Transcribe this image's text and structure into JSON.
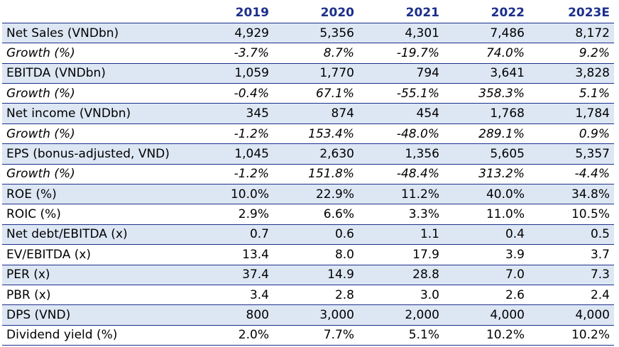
{
  "table": {
    "headers": [
      "",
      "2019",
      "2020",
      "2021",
      "2022",
      "2023E"
    ],
    "rows": [
      {
        "label": "Net Sales (VNDbn)",
        "values": [
          "4,929",
          "5,356",
          "4,301",
          "7,486",
          "8,172"
        ],
        "shaded": true,
        "italic": false
      },
      {
        "label": "Growth (%)",
        "values": [
          "-3.7%",
          "8.7%",
          "-19.7%",
          "74.0%",
          "9.2%"
        ],
        "shaded": false,
        "italic": true
      },
      {
        "label": "EBITDA (VNDbn)",
        "values": [
          "1,059",
          "1,770",
          "794",
          "3,641",
          "3,828"
        ],
        "shaded": true,
        "italic": false
      },
      {
        "label": "Growth (%)",
        "values": [
          "-0.4%",
          "67.1%",
          "-55.1%",
          "358.3%",
          "5.1%"
        ],
        "shaded": false,
        "italic": true
      },
      {
        "label": "Net income (VNDbn)",
        "values": [
          "345",
          "874",
          "454",
          "1,768",
          "1,784"
        ],
        "shaded": true,
        "italic": false
      },
      {
        "label": "Growth (%)",
        "values": [
          "-1.2%",
          "153.4%",
          "-48.0%",
          "289.1%",
          "0.9%"
        ],
        "shaded": false,
        "italic": true
      },
      {
        "label": "EPS (bonus-adjusted, VND)",
        "values": [
          "1,045",
          "2,630",
          "1,356",
          "5,605",
          "5,357"
        ],
        "shaded": true,
        "italic": false
      },
      {
        "label": "Growth (%)",
        "values": [
          "-1.2%",
          "151.8%",
          "-48.4%",
          "313.2%",
          "-4.4%"
        ],
        "shaded": false,
        "italic": true
      },
      {
        "label": "ROE (%)",
        "values": [
          "10.0%",
          "22.9%",
          "11.2%",
          "40.0%",
          "34.8%"
        ],
        "shaded": true,
        "italic": false
      },
      {
        "label": "ROIC (%)",
        "values": [
          "2.9%",
          "6.6%",
          "3.3%",
          "11.0%",
          "10.5%"
        ],
        "shaded": false,
        "italic": false
      },
      {
        "label": "Net debt/EBITDA (x)",
        "values": [
          "0.7",
          "0.6",
          "1.1",
          "0.4",
          "0.5"
        ],
        "shaded": true,
        "italic": false
      },
      {
        "label": "EV/EBITDA (x)",
        "values": [
          "13.4",
          "8.0",
          "17.9",
          "3.9",
          "3.7"
        ],
        "shaded": false,
        "italic": false
      },
      {
        "label": "PER (x)",
        "values": [
          "37.4",
          "14.9",
          "28.8",
          "7.0",
          "7.3"
        ],
        "shaded": true,
        "italic": false
      },
      {
        "label": "PBR (x)",
        "values": [
          "3.4",
          "2.8",
          "3.0",
          "2.6",
          "2.4"
        ],
        "shaded": false,
        "italic": false
      },
      {
        "label": "DPS (VND)",
        "values": [
          "800",
          "3,000",
          "2,000",
          "4,000",
          "4,000"
        ],
        "shaded": true,
        "italic": false
      },
      {
        "label": "Dividend yield (%)",
        "values": [
          "2.0%",
          "7.7%",
          "5.1%",
          "10.2%",
          "10.2%"
        ],
        "shaded": false,
        "italic": false
      }
    ]
  },
  "colors": {
    "header_text": "#1c2f8c",
    "row_shade": "#dde7f4",
    "rule": "#1c2f8c"
  }
}
